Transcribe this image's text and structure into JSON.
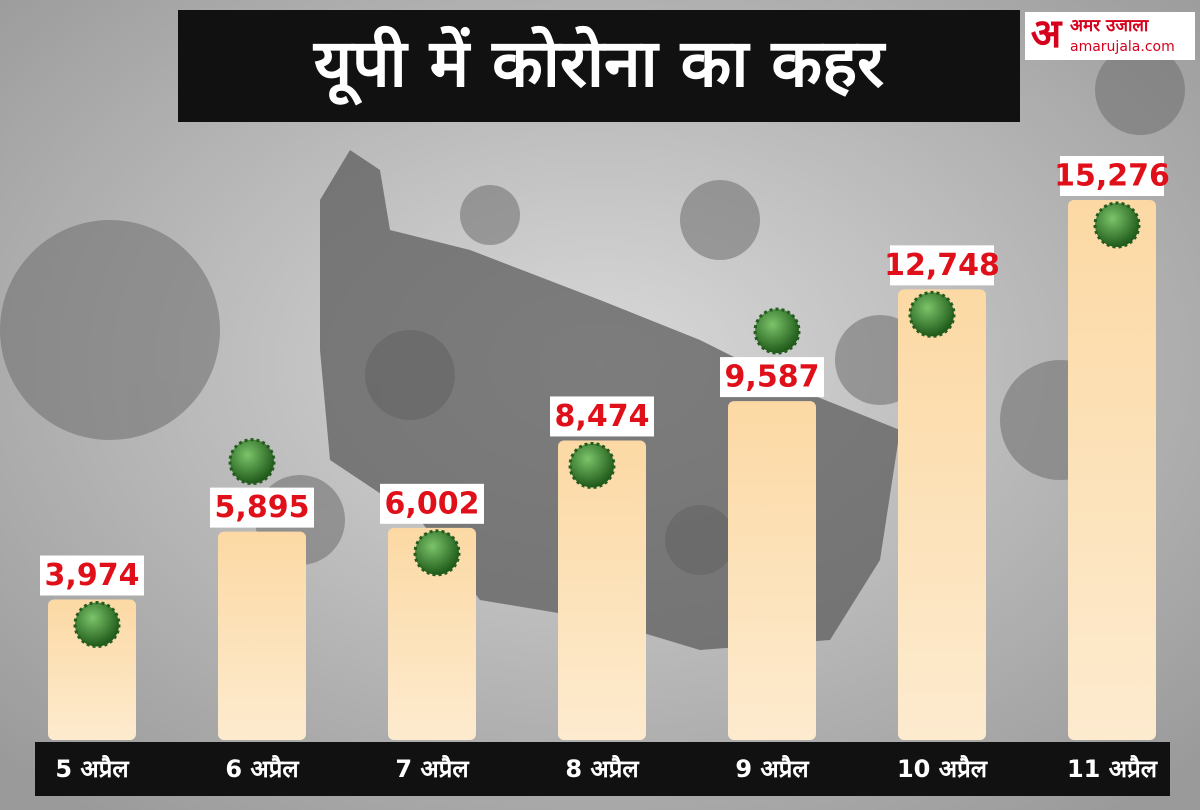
{
  "chart_data": {
    "type": "bar",
    "title": "यूपी में कोरोना का कहर",
    "categories": [
      "5 अप्रैल",
      "6 अप्रैल",
      "7 अप्रैल",
      "8 अप्रैल",
      "9 अप्रैल",
      "10 अप्रैल",
      "11 अप्रैल"
    ],
    "values": [
      3974,
      5895,
      6002,
      8474,
      9587,
      12748,
      15276
    ],
    "value_labels": [
      "3,974",
      "5,895",
      "6,002",
      "8,474",
      "9,587",
      "12,748",
      "15,276"
    ],
    "color": "#fcdcaa"
  },
  "logo": {
    "mark": "अ",
    "name": "अमर उजाला",
    "site": "amarujala.com"
  }
}
